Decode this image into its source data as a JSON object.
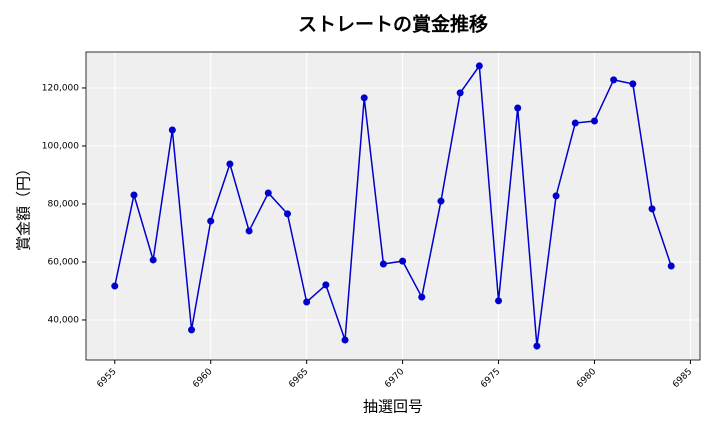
{
  "chart_data": {
    "type": "line",
    "title": "ストレートの賞金推移",
    "x_label": "抽選回号",
    "y_label": "賞金額（円）",
    "x": [
      6955,
      6956,
      6957,
      6958,
      6959,
      6960,
      6961,
      6962,
      6963,
      6964,
      6965,
      6966,
      6967,
      6968,
      6969,
      6970,
      6971,
      6972,
      6973,
      6974,
      6975,
      6976,
      6977,
      6978,
      6979,
      6980,
      6981,
      6982,
      6983,
      6984
    ],
    "series": [
      {
        "color": "#0000cd",
        "values": [
          51700,
          83100,
          60700,
          105500,
          36600,
          74100,
          93800,
          70700,
          83800,
          76600,
          46200,
          52100,
          33100,
          116600,
          59300,
          60300,
          47900,
          81000,
          118300,
          127600,
          46600,
          113100,
          31000,
          82800,
          107900,
          108600,
          122800,
          121400,
          78300,
          58600
        ]
      }
    ],
    "xlim": [
      6953.5,
      6985.5
    ],
    "xticks": [
      6955,
      6960,
      6965,
      6970,
      6975,
      6980,
      6985
    ],
    "ylim": [
      26200,
      132400
    ],
    "yticks": [
      {
        "value": 40000,
        "label": "40,000"
      },
      {
        "value": 60000,
        "label": "60,000"
      },
      {
        "value": 80000,
        "label": "80,000"
      },
      {
        "value": 100000,
        "label": "100,000"
      },
      {
        "value": 120000,
        "label": "120,000"
      }
    ],
    "grid": true
  }
}
